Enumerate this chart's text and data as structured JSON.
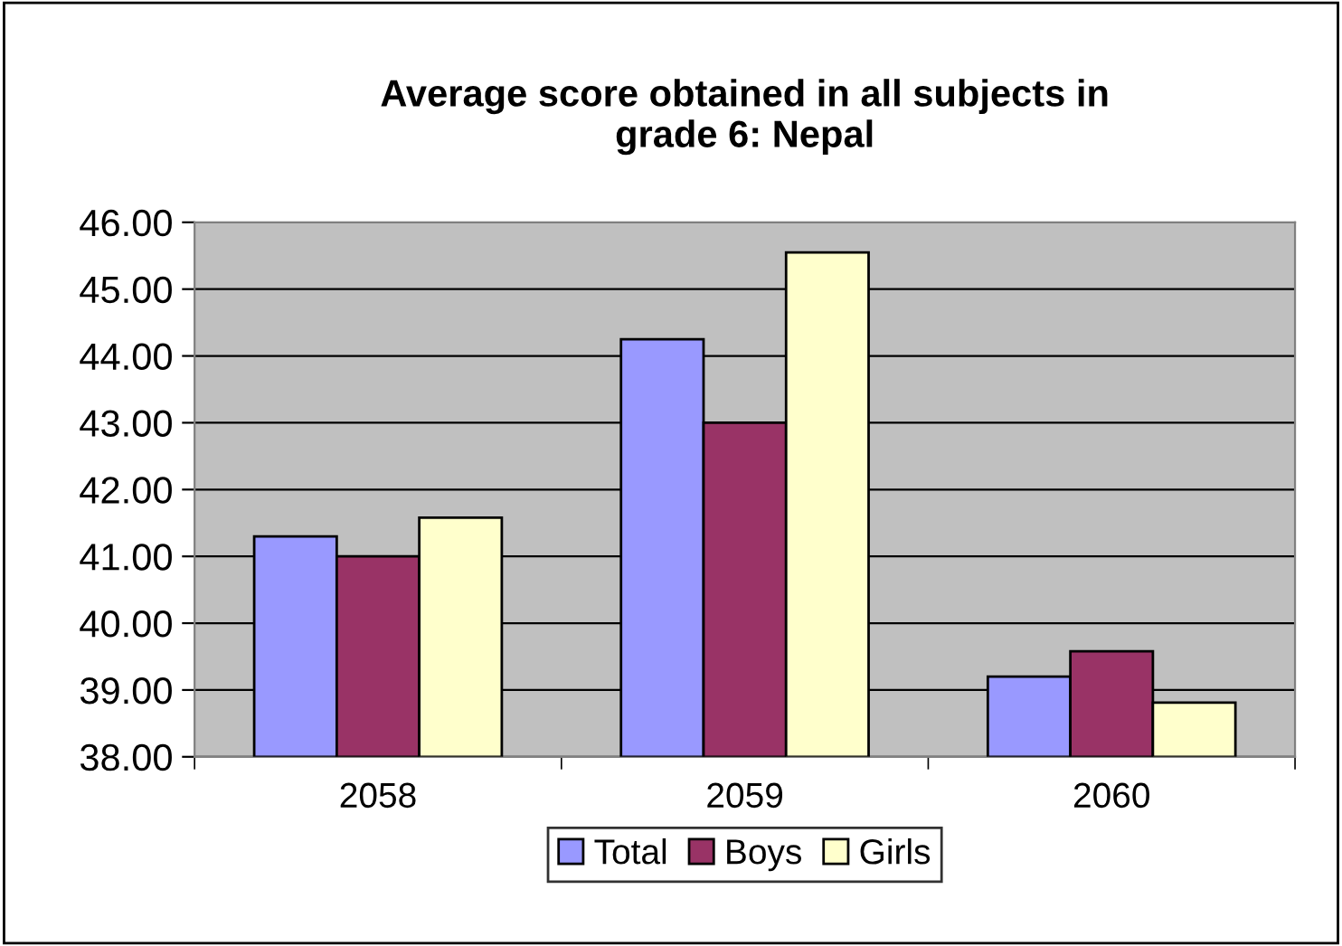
{
  "chart_data": {
    "type": "bar",
    "title": "Average score obtained in all subjects in\ngrade 6: Nepal",
    "categories": [
      "2058",
      "2059",
      "2060"
    ],
    "series": [
      {
        "name": "Total",
        "color": "#9999ff",
        "values": [
          41.3,
          44.25,
          39.2
        ]
      },
      {
        "name": "Boys",
        "color": "#993366",
        "values": [
          41.0,
          43.0,
          39.58
        ]
      },
      {
        "name": "Girls",
        "color": "#ffffcc",
        "values": [
          41.58,
          45.55,
          38.81
        ]
      }
    ],
    "ylim": [
      38,
      46
    ],
    "yticks": [
      {
        "value": 38,
        "label": "38.00"
      },
      {
        "value": 39,
        "label": "39.00"
      },
      {
        "value": 40,
        "label": "40.00"
      },
      {
        "value": 41,
        "label": "41.00"
      },
      {
        "value": 42,
        "label": "42.00"
      },
      {
        "value": 43,
        "label": "43.00"
      },
      {
        "value": 44,
        "label": "44.00"
      },
      {
        "value": 45,
        "label": "45.00"
      },
      {
        "value": 46,
        "label": "46.00"
      }
    ],
    "grid": "y",
    "legend": "bottom"
  }
}
